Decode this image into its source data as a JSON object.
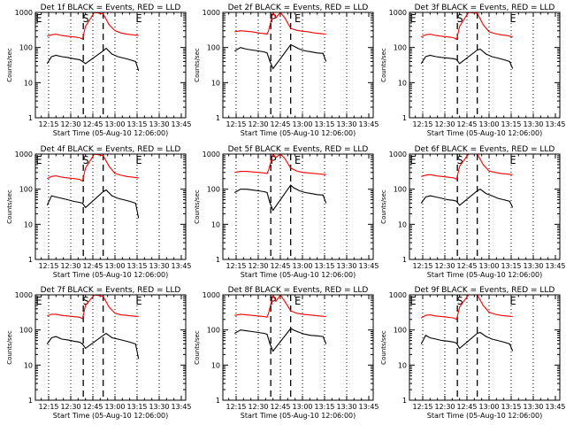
{
  "colors": {
    "events": "#000000",
    "lld": "#ff0000",
    "background": "#ffffff"
  },
  "chart_data": {
    "type": "line",
    "layout": "3x3 grid of panels",
    "shared": {
      "ylabel": "Counts/sec",
      "yscale": "log",
      "ylim": [
        1,
        1000
      ],
      "y_ticks": [
        "1",
        "10",
        "100",
        "1000"
      ],
      "x_ticks": [
        "12:15",
        "12:30",
        "12:45",
        "13:00",
        "13:15",
        "13:30",
        "13:45"
      ],
      "x_tick_minutes": [
        15,
        30,
        45,
        60,
        75,
        90,
        105
      ],
      "xlim_minutes": [
        6,
        108
      ],
      "xlabel": "Start Time (05-Aug-10 12:06:00)",
      "markers": {
        "E1": "E",
        "S": "S",
        "P": "P",
        "E2": "E"
      }
    },
    "panels": [
      {
        "title": "Det 1f BLACK = Events, RED = LLD",
        "profile": "S",
        "marker_labels": [
          "E",
          "S",
          "E"
        ],
        "series": [
          {
            "name": "Events",
            "x": [
              14,
              17,
              20,
              24,
              28,
              32,
              36,
              38,
              40,
              52,
              54,
              58,
              62,
              66,
              70,
              74,
              76
            ],
            "y": [
              35,
              55,
              60,
              55,
              52,
              48,
              45,
              40,
              35,
              80,
              95,
              65,
              55,
              50,
              45,
              40,
              22
            ]
          },
          {
            "name": "LLD",
            "x": [
              14,
              17,
              20,
              24,
              28,
              32,
              36,
              38,
              40,
              46,
              52,
              56,
              60,
              64,
              68,
              72,
              76
            ],
            "y": [
              210,
              230,
              240,
              220,
              210,
              200,
              190,
              175,
              400,
              1000,
              900,
              450,
              300,
              260,
              240,
              230,
              220
            ]
          }
        ]
      },
      {
        "title": "Det 2f BLACK = Events, RED = LLD",
        "profile": "P",
        "marker_labels": [
          "P",
          "E"
        ],
        "series": [
          {
            "name": "Events",
            "x": [
              14,
              18,
              22,
              26,
              30,
              34,
              36,
              38,
              40,
              52,
              54,
              58,
              62,
              66,
              70,
              74,
              76
            ],
            "y": [
              80,
              100,
              90,
              85,
              80,
              75,
              70,
              40,
              25,
              120,
              110,
              90,
              80,
              75,
              70,
              68,
              40
            ]
          },
          {
            "name": "LLD",
            "x": [
              14,
              18,
              22,
              26,
              30,
              34,
              36,
              37,
              40,
              42,
              45,
              48,
              52,
              56,
              60,
              64,
              68,
              72,
              76
            ],
            "y": [
              280,
              300,
              290,
              280,
              260,
              250,
              240,
              300,
              1000,
              700,
              1000,
              700,
              350,
              310,
              290,
              280,
              260,
              250,
              240
            ]
          }
        ]
      },
      {
        "title": "Det 3f BLACK = Events, RED = LLD",
        "profile": "S",
        "marker_labels": [
          "E",
          "S",
          "E"
        ],
        "series": [
          {
            "name": "Events",
            "x": [
              14,
              17,
              20,
              24,
              28,
              32,
              36,
              38,
              40,
              52,
              54,
              58,
              62,
              66,
              70,
              74,
              76
            ],
            "y": [
              35,
              55,
              60,
              55,
              52,
              50,
              48,
              45,
              35,
              85,
              90,
              65,
              55,
              50,
              45,
              40,
              25
            ]
          },
          {
            "name": "LLD",
            "x": [
              14,
              17,
              20,
              24,
              28,
              32,
              36,
              38,
              40,
              46,
              52,
              56,
              60,
              64,
              68,
              72,
              76
            ],
            "y": [
              200,
              230,
              240,
              220,
              210,
              200,
              190,
              170,
              400,
              1000,
              950,
              450,
              280,
              250,
              230,
              220,
              200
            ]
          }
        ]
      },
      {
        "title": "Det 4f BLACK = Events, RED = LLD",
        "profile": "S",
        "marker_labels": [
          "E",
          "S",
          "E"
        ],
        "series": [
          {
            "name": "Events",
            "x": [
              14,
              17,
              20,
              24,
              28,
              32,
              36,
              38,
              40,
              52,
              54,
              58,
              62,
              66,
              70,
              74,
              76
            ],
            "y": [
              35,
              65,
              60,
              55,
              50,
              45,
              42,
              40,
              30,
              85,
              95,
              65,
              55,
              50,
              45,
              40,
              15
            ]
          },
          {
            "name": "LLD",
            "x": [
              14,
              17,
              20,
              24,
              28,
              32,
              36,
              38,
              40,
              46,
              52,
              56,
              60,
              64,
              68,
              72,
              76
            ],
            "y": [
              200,
              230,
              240,
              220,
              210,
              200,
              190,
              170,
              400,
              1000,
              900,
              450,
              280,
              250,
              230,
              220,
              210
            ]
          }
        ]
      },
      {
        "title": "Det 5f BLACK = Events, RED = LLD",
        "profile": "P",
        "marker_labels": [
          "P",
          "E"
        ],
        "series": [
          {
            "name": "Events",
            "x": [
              14,
              18,
              22,
              26,
              30,
              34,
              36,
              38,
              40,
              52,
              54,
              58,
              62,
              66,
              70,
              74,
              76
            ],
            "y": [
              80,
              100,
              100,
              95,
              90,
              85,
              80,
              40,
              25,
              130,
              110,
              90,
              80,
              75,
              70,
              68,
              40
            ]
          },
          {
            "name": "LLD",
            "x": [
              14,
              18,
              22,
              26,
              30,
              34,
              36,
              37,
              40,
              42,
              45,
              48,
              52,
              56,
              60,
              64,
              68,
              72,
              76
            ],
            "y": [
              300,
              320,
              320,
              310,
              300,
              290,
              280,
              350,
              1000,
              800,
              1000,
              750,
              400,
              330,
              300,
              290,
              280,
              270,
              260
            ]
          }
        ]
      },
      {
        "title": "Det 6f BLACK = Events, RED = LLD",
        "profile": "S",
        "marker_labels": [
          "E",
          "S",
          "E"
        ],
        "series": [
          {
            "name": "Events",
            "x": [
              14,
              17,
              20,
              24,
              28,
              32,
              36,
              38,
              40,
              52,
              54,
              58,
              62,
              66,
              70,
              74,
              76
            ],
            "y": [
              40,
              60,
              65,
              60,
              55,
              50,
              48,
              45,
              35,
              90,
              100,
              75,
              65,
              55,
              50,
              45,
              30
            ]
          },
          {
            "name": "LLD",
            "x": [
              14,
              17,
              20,
              24,
              28,
              32,
              36,
              38,
              40,
              46,
              52,
              56,
              60,
              64,
              68,
              72,
              76
            ],
            "y": [
              230,
              250,
              260,
              240,
              230,
              220,
              210,
              190,
              450,
              1000,
              1000,
              500,
              330,
              300,
              280,
              270,
              260
            ]
          }
        ]
      },
      {
        "title": "Det 7f BLACK = Events, RED = LLD",
        "profile": "S",
        "marker_labels": [
          "E",
          "S",
          "E"
        ],
        "series": [
          {
            "name": "Events",
            "x": [
              14,
              17,
              20,
              24,
              28,
              32,
              36,
              38,
              40,
              52,
              54,
              58,
              62,
              66,
              70,
              74,
              76
            ],
            "y": [
              40,
              60,
              65,
              55,
              52,
              48,
              45,
              40,
              30,
              70,
              80,
              60,
              55,
              50,
              45,
              40,
              15
            ]
          },
          {
            "name": "LLD",
            "x": [
              14,
              17,
              20,
              24,
              28,
              32,
              36,
              38,
              40,
              46,
              52,
              56,
              60,
              64,
              68,
              72,
              76
            ],
            "y": [
              250,
              280,
              280,
              260,
              250,
              240,
              230,
              210,
              500,
              1000,
              900,
              450,
              300,
              270,
              260,
              250,
              240
            ]
          }
        ]
      },
      {
        "title": "Det 8f BLACK = Events, RED = LLD",
        "profile": "P",
        "marker_labels": [
          "P",
          "E"
        ],
        "series": [
          {
            "name": "Events",
            "x": [
              14,
              18,
              22,
              26,
              30,
              34,
              36,
              38,
              40,
              52,
              54,
              58,
              62,
              66,
              70,
              74,
              76
            ],
            "y": [
              80,
              100,
              95,
              90,
              85,
              80,
              75,
              40,
              25,
              110,
              100,
              85,
              75,
              70,
              68,
              65,
              40
            ]
          },
          {
            "name": "LLD",
            "x": [
              14,
              18,
              22,
              26,
              30,
              34,
              36,
              37,
              40,
              42,
              45,
              48,
              52,
              56,
              60,
              64,
              68,
              72,
              76
            ],
            "y": [
              260,
              280,
              270,
              260,
              250,
              240,
              230,
              300,
              1000,
              650,
              1000,
              650,
              350,
              300,
              280,
              270,
              260,
              250,
              240
            ]
          }
        ]
      },
      {
        "title": "Det 9f BLACK = Events, RED = LLD",
        "profile": "S",
        "marker_labels": [
          "E",
          "S",
          "E"
        ],
        "series": [
          {
            "name": "Events",
            "x": [
              14,
              17,
              20,
              24,
              28,
              32,
              36,
              38,
              40,
              52,
              54,
              58,
              62,
              66,
              70,
              74,
              76
            ],
            "y": [
              40,
              70,
              60,
              55,
              50,
              48,
              45,
              42,
              30,
              80,
              85,
              65,
              55,
              50,
              45,
              40,
              25
            ]
          },
          {
            "name": "LLD",
            "x": [
              14,
              17,
              20,
              24,
              28,
              32,
              36,
              38,
              40,
              46,
              52,
              56,
              60,
              64,
              68,
              72,
              76
            ],
            "y": [
              220,
              260,
              270,
              250,
              240,
              230,
              220,
              200,
              450,
              1000,
              1000,
              500,
              320,
              280,
              260,
              250,
              240
            ]
          }
        ]
      }
    ]
  }
}
